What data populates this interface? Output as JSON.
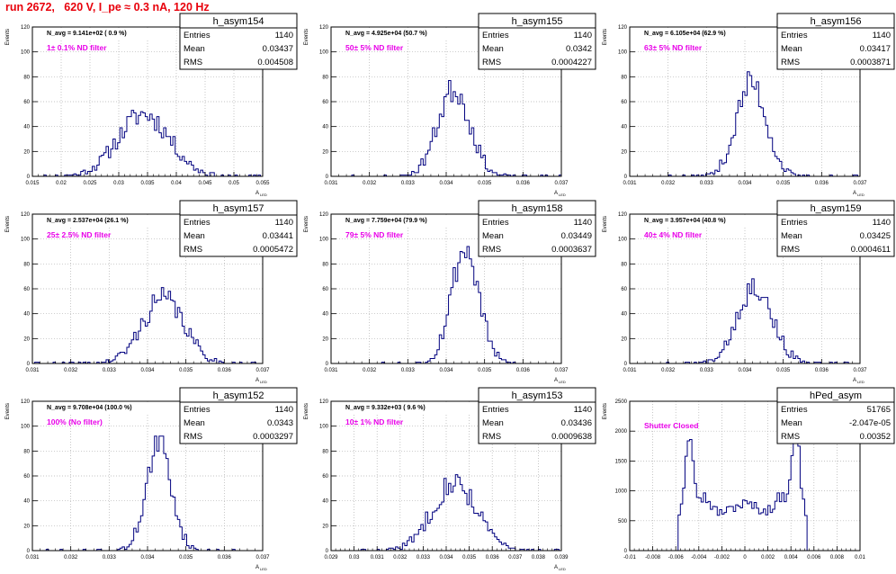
{
  "header": {
    "title": "run 2672,   620 V, I_pe ≈ 0.3 nA, 120 Hz"
  },
  "colors": {
    "title": "#e8000b",
    "histogram_line": "#00007f",
    "annotation": "#e800e8",
    "frame": "#000000",
    "grid": "#b0b0b0"
  },
  "chart_data": [
    {
      "type": "histogram",
      "title": "h_asym154",
      "stats": {
        "entries_label": "Entries",
        "entries": "1140",
        "mean_label": "Mean",
        "mean": "0.03437",
        "rms_label": "RMS",
        "rms": "0.004508"
      },
      "n_avg": "N_avg = 9.141e+02 ( 0.9 %)",
      "filter": "1± 0.1% ND filter",
      "ylabel": "Events",
      "xlabel": "A",
      "xlabel_sub": "LED",
      "xlim": [
        0.015,
        0.055
      ],
      "ylim": [
        0,
        120
      ],
      "xticks": [
        "0.015",
        "0.02",
        "0.025",
        "0.03",
        "0.035",
        "0.04",
        "0.045",
        "0.05",
        "0.055"
      ],
      "yticks": [
        "0",
        "20",
        "40",
        "60",
        "80",
        "100",
        "120"
      ],
      "grid": true,
      "mean": 0.03437,
      "rms": 0.004508,
      "peak": 50,
      "shape": "gauss",
      "bins": 100,
      "seed": 11
    },
    {
      "type": "histogram",
      "title": "h_asym155",
      "stats": {
        "entries_label": "Entries",
        "entries": "1140",
        "mean_label": "Mean",
        "mean": "0.0342",
        "rms_label": "RMS",
        "rms": "0.0004227"
      },
      "n_avg": "N_avg = 4.925e+04 (50.7 %)",
      "filter": "50± 5% ND filter",
      "ylabel": "Events",
      "xlabel": "A",
      "xlabel_sub": "LED",
      "xlim": [
        0.031,
        0.037
      ],
      "ylim": [
        0,
        120
      ],
      "xticks": [
        "0.031",
        "0.032",
        "0.033",
        "0.034",
        "0.035",
        "0.036",
        "0.037"
      ],
      "yticks": [
        "0",
        "20",
        "40",
        "60",
        "80",
        "100",
        "120"
      ],
      "grid": true,
      "mean": 0.0342,
      "rms": 0.0004227,
      "peak": 70,
      "shape": "gauss",
      "bins": 100,
      "seed": 23
    },
    {
      "type": "histogram",
      "title": "h_asym156",
      "stats": {
        "entries_label": "Entries",
        "entries": "1140",
        "mean_label": "Mean",
        "mean": "0.03417",
        "rms_label": "RMS",
        "rms": "0.0003871"
      },
      "n_avg": "N_avg = 6.105e+04 (62.9 %)",
      "filter": "63± 5% ND filter",
      "ylabel": "Events",
      "xlabel": "A",
      "xlabel_sub": "LED",
      "xlim": [
        0.031,
        0.037
      ],
      "ylim": [
        0,
        120
      ],
      "xticks": [
        "0.031",
        "0.032",
        "0.033",
        "0.034",
        "0.035",
        "0.036",
        "0.037"
      ],
      "yticks": [
        "0",
        "20",
        "40",
        "60",
        "80",
        "100",
        "120"
      ],
      "grid": true,
      "mean": 0.03417,
      "rms": 0.0003871,
      "peak": 75,
      "shape": "gauss",
      "bins": 100,
      "seed": 37
    },
    {
      "type": "histogram",
      "title": "h_asym157",
      "stats": {
        "entries_label": "Entries",
        "entries": "1140",
        "mean_label": "Mean",
        "mean": "0.03441",
        "rms_label": "RMS",
        "rms": "0.0005472"
      },
      "n_avg": "N_avg = 2.537e+04 (26.1 %)",
      "filter": "25± 2.5% ND filter",
      "ylabel": "Events",
      "xlabel": "A",
      "xlabel_sub": "LED",
      "xlim": [
        0.031,
        0.037
      ],
      "ylim": [
        0,
        120
      ],
      "xticks": [
        "0.031",
        "0.032",
        "0.033",
        "0.034",
        "0.035",
        "0.036",
        "0.037"
      ],
      "yticks": [
        "0",
        "20",
        "40",
        "60",
        "80",
        "100",
        "120"
      ],
      "grid": true,
      "mean": 0.03441,
      "rms": 0.0005472,
      "peak": 52,
      "shape": "gauss",
      "bins": 100,
      "seed": 41
    },
    {
      "type": "histogram",
      "title": "h_asym158",
      "stats": {
        "entries_label": "Entries",
        "entries": "1140",
        "mean_label": "Mean",
        "mean": "0.03449",
        "rms_label": "RMS",
        "rms": "0.0003637"
      },
      "n_avg": "N_avg = 7.759e+04 (79.9 %)",
      "filter": "79± 5% ND filter",
      "ylabel": "Events",
      "xlabel": "A",
      "xlabel_sub": "LED",
      "xlim": [
        0.031,
        0.037
      ],
      "ylim": [
        0,
        120
      ],
      "xticks": [
        "0.031",
        "0.032",
        "0.033",
        "0.034",
        "0.035",
        "0.036",
        "0.037"
      ],
      "yticks": [
        "0",
        "20",
        "40",
        "60",
        "80",
        "100",
        "120"
      ],
      "grid": true,
      "mean": 0.03449,
      "rms": 0.0003637,
      "peak": 92,
      "shape": "gauss",
      "bins": 100,
      "seed": 53
    },
    {
      "type": "histogram",
      "title": "h_asym159",
      "stats": {
        "entries_label": "Entries",
        "entries": "1140",
        "mean_label": "Mean",
        "mean": "0.03425",
        "rms_label": "RMS",
        "rms": "0.0004611"
      },
      "n_avg": "N_avg = 3.957e+04 (40.8 %)",
      "filter": "40± 4% ND filter",
      "ylabel": "Events",
      "xlabel": "A",
      "xlabel_sub": "LED",
      "xlim": [
        0.031,
        0.037
      ],
      "ylim": [
        0,
        120
      ],
      "xticks": [
        "0.031",
        "0.032",
        "0.033",
        "0.034",
        "0.035",
        "0.036",
        "0.037"
      ],
      "yticks": [
        "0",
        "20",
        "40",
        "60",
        "80",
        "100",
        "120"
      ],
      "grid": true,
      "mean": 0.03425,
      "rms": 0.0004611,
      "peak": 62,
      "shape": "gauss",
      "bins": 100,
      "seed": 67
    },
    {
      "type": "histogram",
      "title": "h_asym152",
      "stats": {
        "entries_label": "Entries",
        "entries": "1140",
        "mean_label": "Mean",
        "mean": "0.0343",
        "rms_label": "RMS",
        "rms": "0.0003297"
      },
      "n_avg": "N_avg = 9.708e+04 (100.0 %)",
      "filter": "100% (No filter)",
      "ylabel": "Events",
      "xlabel": "A",
      "xlabel_sub": "LED",
      "xlim": [
        0.031,
        0.037
      ],
      "ylim": [
        0,
        120
      ],
      "xticks": [
        "0.031",
        "0.032",
        "0.033",
        "0.034",
        "0.035",
        "0.036",
        "0.037"
      ],
      "yticks": [
        "0",
        "20",
        "40",
        "60",
        "80",
        "100",
        "120"
      ],
      "grid": true,
      "mean": 0.0343,
      "rms": 0.0003297,
      "peak": 85,
      "shape": "gauss",
      "bins": 100,
      "seed": 71
    },
    {
      "type": "histogram",
      "title": "h_asym153",
      "stats": {
        "entries_label": "Entries",
        "entries": "1140",
        "mean_label": "Mean",
        "mean": "0.03436",
        "rms_label": "RMS",
        "rms": "0.0009638"
      },
      "n_avg": "N_avg = 9.332e+03 ( 9.6 %)",
      "filter": "10± 1% ND filter",
      "ylabel": "Events",
      "xlabel": "A",
      "xlabel_sub": "LED",
      "xlim": [
        0.029,
        0.039
      ],
      "ylim": [
        0,
        120
      ],
      "xticks": [
        "0.029",
        "0.03",
        "0.031",
        "0.032",
        "0.033",
        "0.034",
        "0.035",
        "0.036",
        "0.037",
        "0.038",
        "0.039"
      ],
      "yticks": [
        "0",
        "20",
        "40",
        "60",
        "80",
        "100",
        "120"
      ],
      "grid": true,
      "mean": 0.03436,
      "rms": 0.0009638,
      "peak": 55,
      "shape": "gauss",
      "bins": 100,
      "seed": 83
    },
    {
      "type": "histogram",
      "title": "hPed_asym",
      "stats": {
        "entries_label": "Entries",
        "entries": "51765",
        "mean_label": "Mean",
        "mean": "-2.047e-05",
        "rms_label": "RMS",
        "rms": "0.00352"
      },
      "n_avg": "",
      "filter": "Shutter Closed",
      "ylabel": "Events",
      "xlabel": "",
      "xlabel_sub": "",
      "xlim": [
        -0.01,
        0.01
      ],
      "ylim": [
        0,
        2500
      ],
      "xticks": [
        "-0.01",
        "-0.008",
        "-0.006",
        "-0.004",
        "-0.002",
        "0",
        "0.002",
        "0.004",
        "0.006",
        "0.008",
        "0.01"
      ],
      "yticks": [
        "0",
        "500",
        "1000",
        "1500",
        "2000",
        "2500"
      ],
      "grid": true,
      "shape": "pedestal",
      "bins": 100,
      "seed": 97,
      "pedestal_params": {
        "left_peak_x": -0.0048,
        "right_peak_x": 0.0044,
        "peak_height": 2050,
        "valley_height": 600,
        "center_bump": 780,
        "cut_low": -0.0058,
        "cut_high": 0.0054
      }
    }
  ]
}
